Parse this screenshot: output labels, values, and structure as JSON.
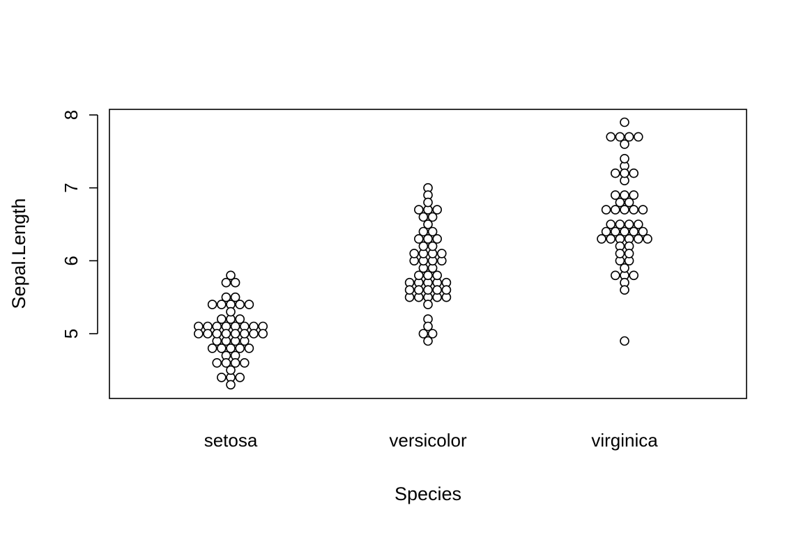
{
  "chart_data": {
    "type": "scatter",
    "subtype": "beeswarm",
    "title": "",
    "xlabel": "Species",
    "ylabel": "Sepal.Length",
    "categories": [
      "setosa",
      "versicolor",
      "virginica"
    ],
    "ylim": [
      4.2,
      8.1
    ],
    "yticks": [
      5,
      6,
      7,
      8
    ],
    "grid": false,
    "legend": "none",
    "marker": "open-circle",
    "series": [
      {
        "category": "setosa",
        "values": [
          5.1,
          4.9,
          4.7,
          4.6,
          5.0,
          5.4,
          4.6,
          5.0,
          4.4,
          4.9,
          5.4,
          4.8,
          4.8,
          4.3,
          5.8,
          5.7,
          5.4,
          5.1,
          5.7,
          5.1,
          5.4,
          5.1,
          4.6,
          5.1,
          4.8,
          5.0,
          5.0,
          5.2,
          5.2,
          4.7,
          4.8,
          5.4,
          5.2,
          5.5,
          4.9,
          5.0,
          5.5,
          4.9,
          4.4,
          5.1,
          5.0,
          4.5,
          4.4,
          5.0,
          5.1,
          4.8,
          5.1,
          4.6,
          5.3,
          5.0
        ]
      },
      {
        "category": "versicolor",
        "values": [
          7.0,
          6.4,
          6.9,
          5.5,
          6.5,
          5.7,
          6.3,
          4.9,
          6.6,
          5.2,
          5.0,
          5.9,
          6.0,
          6.1,
          5.6,
          6.7,
          5.6,
          5.8,
          6.2,
          5.6,
          5.9,
          6.1,
          6.3,
          6.1,
          6.4,
          6.6,
          6.8,
          6.7,
          6.0,
          5.7,
          5.5,
          5.5,
          5.8,
          6.0,
          5.4,
          6.0,
          6.7,
          6.3,
          5.6,
          5.5,
          5.5,
          6.1,
          5.8,
          5.0,
          5.6,
          5.7,
          5.7,
          6.2,
          5.1,
          5.7
        ]
      },
      {
        "category": "virginica",
        "values": [
          6.3,
          5.8,
          7.1,
          6.3,
          6.5,
          7.6,
          4.9,
          7.3,
          6.7,
          7.2,
          6.5,
          6.4,
          6.8,
          5.7,
          5.8,
          6.4,
          6.5,
          7.7,
          7.7,
          6.0,
          6.9,
          5.6,
          7.7,
          6.3,
          6.7,
          7.2,
          6.2,
          6.1,
          6.4,
          7.2,
          7.4,
          7.9,
          6.4,
          6.3,
          6.1,
          7.7,
          6.3,
          6.4,
          6.0,
          6.9,
          6.7,
          6.9,
          5.8,
          6.8,
          6.7,
          6.7,
          6.3,
          6.5,
          6.2,
          5.9
        ]
      }
    ]
  }
}
